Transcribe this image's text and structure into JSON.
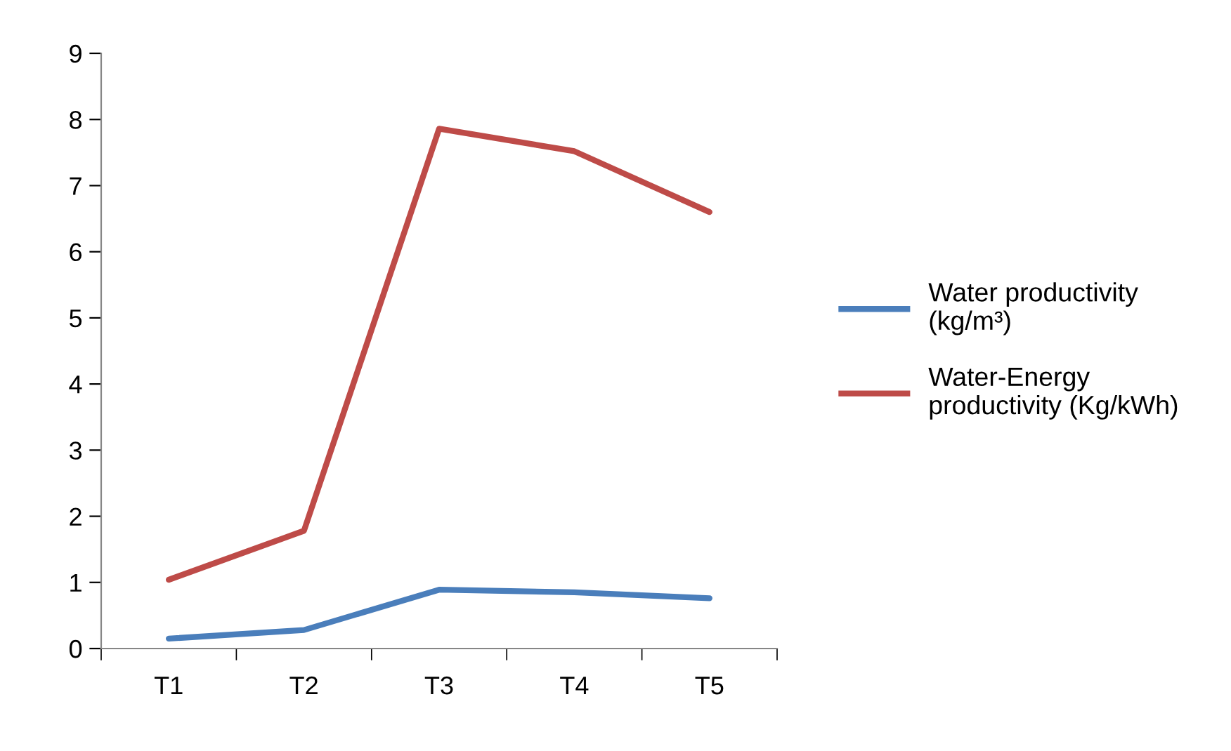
{
  "chart_data": {
    "type": "line",
    "categories": [
      "T1",
      "T2",
      "T3",
      "T4",
      "T5"
    ],
    "series": [
      {
        "name": "Water productivity\n(kg/m³)",
        "color": "#4a7ebb",
        "values": [
          0.15,
          0.28,
          0.89,
          0.85,
          0.76
        ]
      },
      {
        "name": "Water-Energy\nproductivity (Kg/kWh)",
        "color": "#be4b48",
        "values": [
          1.04,
          1.78,
          7.86,
          7.52,
          6.6
        ]
      }
    ],
    "ylim": [
      0,
      9
    ],
    "yticks": [
      0,
      1,
      2,
      3,
      4,
      5,
      6,
      7,
      8,
      9
    ],
    "grid": false,
    "legend": "right",
    "marker": "none",
    "line_style": "solid"
  }
}
